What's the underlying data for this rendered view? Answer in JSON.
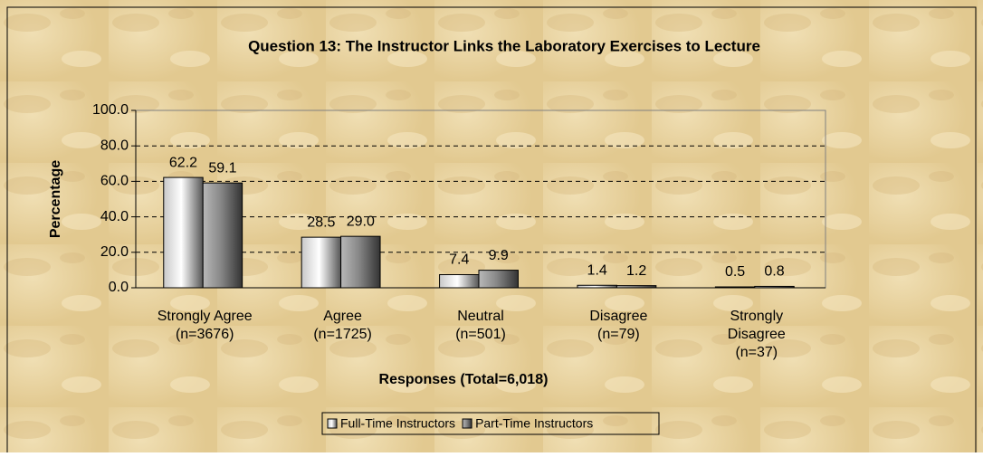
{
  "chart_data": {
    "type": "bar",
    "title": "Question 13:  The Instructor Links the Laboratory Exercises to Lecture",
    "xlabel": "Responses (Total=6,018)",
    "ylabel": "Percentage",
    "categories": [
      [
        "Strongly Agree",
        "(n=3676)"
      ],
      [
        "Agree",
        "(n=1725)"
      ],
      [
        "Neutral",
        "(n=501)"
      ],
      [
        "Disagree",
        "(n=79)"
      ],
      [
        "Strongly",
        "Disagree",
        "(n=37)"
      ]
    ],
    "series": [
      {
        "name": "Full-Time Instructors",
        "color": "#c8c8c8",
        "values": [
          62.2,
          28.5,
          7.4,
          1.4,
          0.5
        ],
        "value_labels": [
          "62.2",
          "28.5",
          "7.4",
          "1.4",
          "0.5"
        ]
      },
      {
        "name": "Part-Time Instructors",
        "color": "#888888",
        "values": [
          59.1,
          29.0,
          9.9,
          1.2,
          0.8
        ],
        "value_labels": [
          "59.1",
          "29.0",
          "9.9",
          "1.2",
          "0.8"
        ]
      }
    ],
    "ylim": [
      0,
      100
    ],
    "yticks": [
      {
        "value": 0,
        "label": "0.0"
      },
      {
        "value": 20,
        "label": "20.0"
      },
      {
        "value": 40,
        "label": "40.0"
      },
      {
        "value": 60,
        "label": "60.0"
      },
      {
        "value": 80,
        "label": "80.0"
      },
      {
        "value": 100,
        "label": "100.0"
      }
    ],
    "grid": true,
    "legend": "bottom"
  }
}
